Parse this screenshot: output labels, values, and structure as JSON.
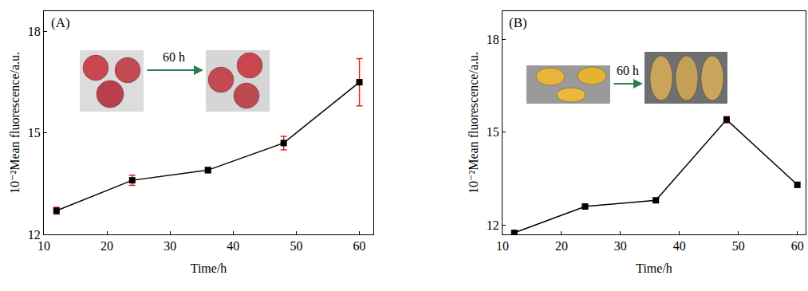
{
  "chart_data": [
    {
      "type": "line",
      "title": "(A)",
      "x_label": "Time/h",
      "y_label": "10⁻²Mean fluorescence/a.u.",
      "x": [
        12,
        24,
        36,
        48,
        60
      ],
      "values": [
        12.7,
        13.6,
        13.9,
        14.7,
        16.5
      ],
      "errors": [
        0.1,
        0.15,
        0.08,
        0.2,
        0.7
      ],
      "xlim": [
        10,
        62.2
      ],
      "xticks": [
        10,
        20,
        30,
        40,
        50,
        60
      ],
      "ylim": [
        12,
        18.6
      ],
      "yticks": [
        12,
        15,
        18
      ],
      "color": "#000000",
      "marker": "square",
      "line_style": "solid",
      "annotations": [
        "60 h"
      ]
    },
    {
      "type": "line",
      "title": "(B)",
      "x_label": "Time/h",
      "y_label": "10⁻²Mean fluorescence/a.u.",
      "x": [
        12,
        24,
        36,
        48,
        60
      ],
      "values": [
        11.75,
        12.6,
        12.8,
        15.4,
        13.3
      ],
      "errors": [
        0.05,
        0.06,
        0.05,
        0.1,
        0.08
      ],
      "xlim": [
        10,
        61.4
      ],
      "xticks": [
        10,
        20,
        30,
        40,
        50,
        60
      ],
      "ylim": [
        11.7,
        18.9
      ],
      "yticks": [
        12,
        15,
        18
      ],
      "color": "#000000",
      "marker": "square",
      "line_style": "solid",
      "annotations": [
        "60 h"
      ]
    }
  ]
}
